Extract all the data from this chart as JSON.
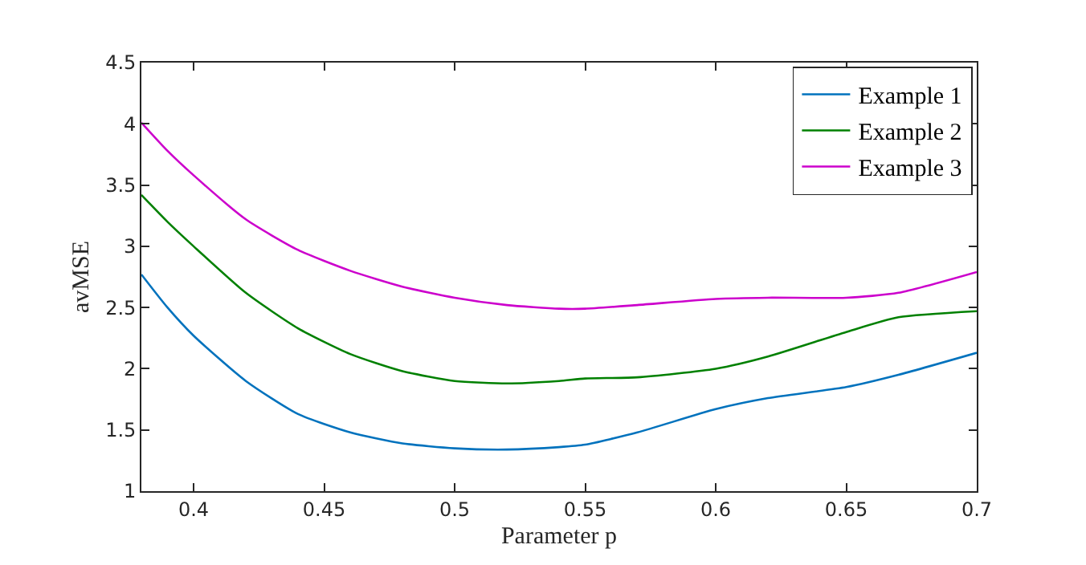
{
  "chart_data": {
    "type": "line",
    "xlabel": "Parameter p",
    "ylabel": "avMSE",
    "xlim": [
      0.38,
      0.7
    ],
    "xticks": [
      0.4,
      0.45,
      0.5,
      0.55,
      0.6,
      0.65,
      0.7
    ],
    "ylim": [
      1,
      4.5
    ],
    "yticks": [
      1,
      1.5,
      2,
      2.5,
      3,
      3.5,
      4,
      4.5
    ],
    "x": [
      0.38,
      0.39,
      0.4,
      0.42,
      0.44,
      0.46,
      0.48,
      0.5,
      0.52,
      0.54,
      0.55,
      0.57,
      0.6,
      0.62,
      0.65,
      0.67,
      0.7
    ],
    "legend": "top right",
    "line_style": "solid",
    "marker": "none",
    "series": [
      {
        "name": "Example 1",
        "color": "#0072bd",
        "values": [
          2.77,
          2.5,
          2.27,
          1.9,
          1.63,
          1.48,
          1.39,
          1.35,
          1.34,
          1.36,
          1.38,
          1.48,
          1.67,
          1.76,
          1.85,
          1.95,
          2.13
        ]
      },
      {
        "name": "Example 2",
        "color": "#008000",
        "values": [
          3.42,
          3.2,
          3.0,
          2.62,
          2.33,
          2.12,
          1.98,
          1.9,
          1.88,
          1.9,
          1.92,
          1.93,
          2.0,
          2.1,
          2.3,
          2.42,
          2.47
        ]
      },
      {
        "name": "Example 3",
        "color": "#cc00cc",
        "values": [
          4.01,
          3.78,
          3.58,
          3.22,
          2.97,
          2.8,
          2.67,
          2.58,
          2.52,
          2.49,
          2.49,
          2.52,
          2.57,
          2.58,
          2.58,
          2.62,
          2.79
        ]
      }
    ]
  }
}
